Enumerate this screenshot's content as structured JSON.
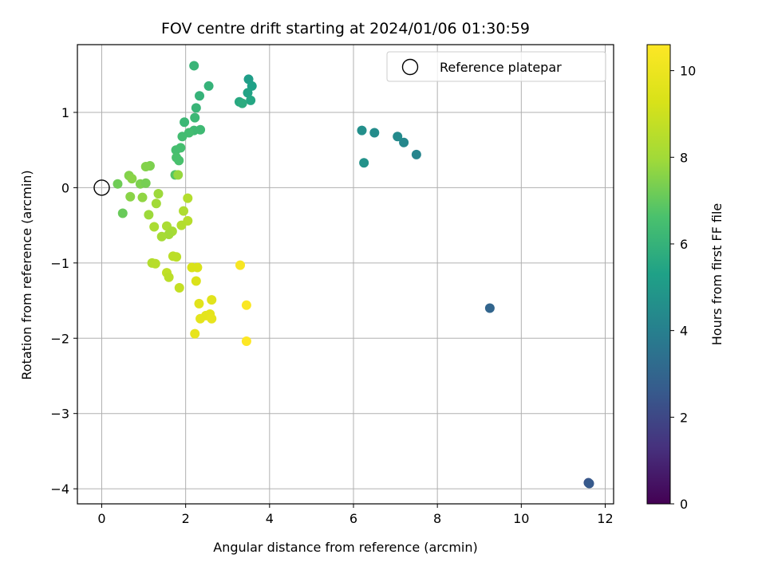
{
  "chart_data": {
    "type": "scatter",
    "title": "FOV centre drift starting at 2024/01/06 01:30:59",
    "xlabel": "Angular distance from reference (arcmin)",
    "ylabel": "Rotation from reference (arcmin)",
    "xlim": [
      -0.58,
      12.2
    ],
    "ylim": [
      -4.2,
      1.9
    ],
    "xticks": [
      0,
      2,
      4,
      6,
      8,
      10,
      12
    ],
    "yticks": [
      -4,
      -3,
      -2,
      -1,
      0,
      1
    ],
    "grid": true,
    "legend": {
      "placement": "top-right",
      "entries": [
        "Reference platepar"
      ]
    },
    "reference_point": {
      "x": 0,
      "y": 0
    },
    "colorbar": {
      "label": "Hours from first FF file",
      "range": [
        0,
        10.6
      ],
      "ticks": [
        0,
        2,
        4,
        6,
        8,
        10
      ],
      "colormap": "viridis"
    },
    "points": [
      {
        "x": 11.6,
        "y": -3.92,
        "c": 2.4
      },
      {
        "x": 11.62,
        "y": -3.93,
        "c": 2.6
      },
      {
        "x": 9.25,
        "y": -1.6,
        "c": 3.0
      },
      {
        "x": 7.5,
        "y": 0.44,
        "c": 4.2
      },
      {
        "x": 7.2,
        "y": 0.6,
        "c": 4.3
      },
      {
        "x": 7.05,
        "y": 0.68,
        "c": 4.4
      },
      {
        "x": 6.5,
        "y": 0.73,
        "c": 4.5
      },
      {
        "x": 6.2,
        "y": 0.76,
        "c": 4.6
      },
      {
        "x": 6.25,
        "y": 0.33,
        "c": 4.7
      },
      {
        "x": 3.5,
        "y": 1.44,
        "c": 5.2
      },
      {
        "x": 3.58,
        "y": 1.35,
        "c": 5.3
      },
      {
        "x": 3.48,
        "y": 1.26,
        "c": 5.4
      },
      {
        "x": 3.55,
        "y": 1.16,
        "c": 5.5
      },
      {
        "x": 3.28,
        "y": 1.14,
        "c": 5.6
      },
      {
        "x": 3.35,
        "y": 1.12,
        "c": 5.7
      },
      {
        "x": 2.55,
        "y": 1.35,
        "c": 6.0
      },
      {
        "x": 2.33,
        "y": 1.22,
        "c": 6.0
      },
      {
        "x": 2.2,
        "y": 1.62,
        "c": 6.1
      },
      {
        "x": 2.25,
        "y": 1.06,
        "c": 6.1
      },
      {
        "x": 2.22,
        "y": 0.93,
        "c": 6.2
      },
      {
        "x": 1.97,
        "y": 0.87,
        "c": 6.2
      },
      {
        "x": 2.35,
        "y": 0.77,
        "c": 6.3
      },
      {
        "x": 2.2,
        "y": 0.76,
        "c": 6.3
      },
      {
        "x": 2.08,
        "y": 0.73,
        "c": 6.4
      },
      {
        "x": 1.92,
        "y": 0.68,
        "c": 6.4
      },
      {
        "x": 1.88,
        "y": 0.53,
        "c": 6.5
      },
      {
        "x": 1.77,
        "y": 0.5,
        "c": 6.5
      },
      {
        "x": 1.78,
        "y": 0.4,
        "c": 6.6
      },
      {
        "x": 1.84,
        "y": 0.36,
        "c": 6.6
      },
      {
        "x": 1.75,
        "y": 0.17,
        "c": 6.8
      },
      {
        "x": 1.82,
        "y": 0.17,
        "c": 7.8
      },
      {
        "x": 1.15,
        "y": 0.29,
        "c": 7.4
      },
      {
        "x": 1.05,
        "y": 0.28,
        "c": 7.5
      },
      {
        "x": 0.65,
        "y": 0.16,
        "c": 7.5
      },
      {
        "x": 0.72,
        "y": 0.12,
        "c": 7.6
      },
      {
        "x": 0.38,
        "y": 0.05,
        "c": 7.2
      },
      {
        "x": 0.92,
        "y": 0.05,
        "c": 7.4
      },
      {
        "x": 1.05,
        "y": 0.06,
        "c": 7.3
      },
      {
        "x": 0.5,
        "y": -0.34,
        "c": 7.1
      },
      {
        "x": 0.68,
        "y": -0.12,
        "c": 7.6
      },
      {
        "x": 0.97,
        "y": -0.13,
        "c": 7.7
      },
      {
        "x": 1.35,
        "y": -0.08,
        "c": 7.9
      },
      {
        "x": 1.3,
        "y": -0.21,
        "c": 8.0
      },
      {
        "x": 1.12,
        "y": -0.36,
        "c": 7.9
      },
      {
        "x": 2.05,
        "y": -0.14,
        "c": 8.4
      },
      {
        "x": 1.95,
        "y": -0.31,
        "c": 8.3
      },
      {
        "x": 2.05,
        "y": -0.44,
        "c": 8.5
      },
      {
        "x": 1.9,
        "y": -0.5,
        "c": 8.4
      },
      {
        "x": 1.25,
        "y": -0.52,
        "c": 8.2
      },
      {
        "x": 1.55,
        "y": -0.51,
        "c": 8.2
      },
      {
        "x": 1.68,
        "y": -0.58,
        "c": 8.1
      },
      {
        "x": 1.6,
        "y": -0.62,
        "c": 8.0
      },
      {
        "x": 1.43,
        "y": -0.65,
        "c": 8.1
      },
      {
        "x": 1.7,
        "y": -0.91,
        "c": 8.6
      },
      {
        "x": 1.78,
        "y": -0.92,
        "c": 8.6
      },
      {
        "x": 1.2,
        "y": -1.0,
        "c": 8.4
      },
      {
        "x": 1.28,
        "y": -1.01,
        "c": 8.5
      },
      {
        "x": 1.55,
        "y": -1.13,
        "c": 8.7
      },
      {
        "x": 1.6,
        "y": -1.19,
        "c": 8.6
      },
      {
        "x": 1.85,
        "y": -1.33,
        "c": 8.8
      },
      {
        "x": 2.15,
        "y": -1.06,
        "c": 9.3
      },
      {
        "x": 2.28,
        "y": -1.06,
        "c": 9.3
      },
      {
        "x": 2.25,
        "y": -1.24,
        "c": 9.4
      },
      {
        "x": 2.32,
        "y": -1.54,
        "c": 9.6
      },
      {
        "x": 2.62,
        "y": -1.49,
        "c": 9.6
      },
      {
        "x": 2.48,
        "y": -1.7,
        "c": 9.7
      },
      {
        "x": 2.58,
        "y": -1.68,
        "c": 9.7
      },
      {
        "x": 2.35,
        "y": -1.74,
        "c": 9.7
      },
      {
        "x": 2.62,
        "y": -1.74,
        "c": 9.8
      },
      {
        "x": 2.22,
        "y": -1.94,
        "c": 9.8
      },
      {
        "x": 3.3,
        "y": -1.03,
        "c": 10.4
      },
      {
        "x": 3.45,
        "y": -1.56,
        "c": 10.5
      },
      {
        "x": 3.45,
        "y": -2.04,
        "c": 10.6
      }
    ]
  }
}
